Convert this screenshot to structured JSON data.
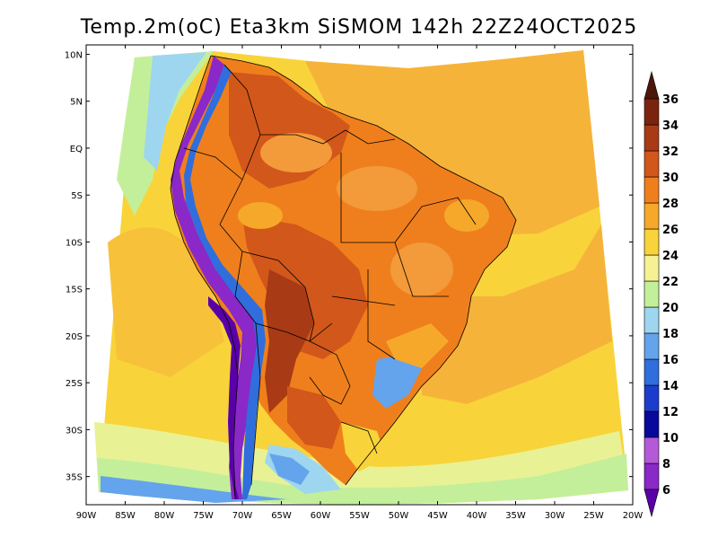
{
  "title": "Temp.2m(oC) Eta3km SiSMOM 142h 22Z24OCT2025",
  "variable": "Temp.2m",
  "units": "oC",
  "model": "Eta3km SiSMOM",
  "forecast_hour": "142h",
  "valid_time": "22Z24OCT2025",
  "lat_axis": {
    "labels": [
      "10N",
      "5N",
      "EQ",
      "5S",
      "10S",
      "15S",
      "20S",
      "25S",
      "30S",
      "35S"
    ],
    "values": [
      10,
      5,
      0,
      -5,
      -10,
      -15,
      -20,
      -25,
      -30,
      -35
    ]
  },
  "lon_axis": {
    "labels": [
      "90W",
      "85W",
      "80W",
      "75W",
      "70W",
      "65W",
      "60W",
      "55W",
      "50W",
      "45W",
      "40W",
      "35W",
      "30W",
      "25W",
      "20W"
    ],
    "values": [
      -90,
      -85,
      -80,
      -75,
      -70,
      -65,
      -60,
      -55,
      -50,
      -45,
      -40,
      -35,
      -30,
      -25,
      -20
    ]
  },
  "domain_extent": {
    "lon_min": -90,
    "lon_max": -20,
    "lat_min": -38,
    "lat_max": 11
  },
  "colorbar": {
    "labels": [
      "6",
      "8",
      "10",
      "12",
      "14",
      "16",
      "18",
      "20",
      "22",
      "24",
      "26",
      "28",
      "30",
      "32",
      "34",
      "36"
    ],
    "levels": [
      6,
      8,
      10,
      12,
      14,
      16,
      18,
      20,
      22,
      24,
      26,
      28,
      30,
      32,
      34,
      36
    ],
    "colors": [
      "#5a00a8",
      "#8a28c8",
      "#b45ad8",
      "#08089a",
      "#1c3ccc",
      "#2f6edc",
      "#64a4ec",
      "#9ed6f0",
      "#c4ef9a",
      "#f6f294",
      "#f8d43a",
      "#f6a82a",
      "#ef7f1c",
      "#d2571a",
      "#a83a16",
      "#7a2410",
      "#4e1608"
    ],
    "under_color": "#5a00a8",
    "over_color": "#4e1608"
  },
  "colors": {
    "ocean_warm": "#f6a82a",
    "ocean_mid": "#f8d43a",
    "ocean_cool": "#c4ef9a",
    "ocean_south": "#9ed6f0",
    "land_hot": "#d2571a",
    "land_warm": "#ef7f1c",
    "andes_cold": "#5a00a8",
    "andes_mid": "#2f6edc"
  }
}
